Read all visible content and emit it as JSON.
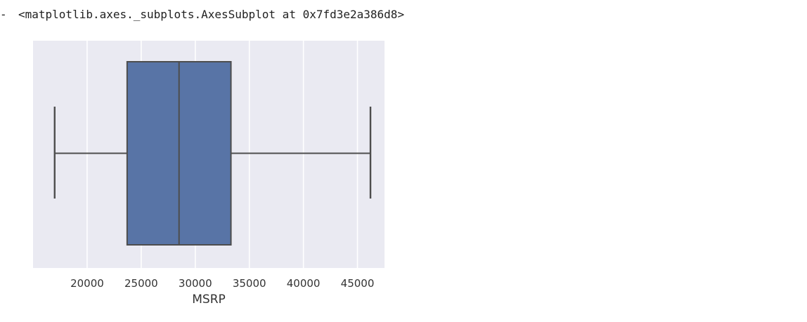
{
  "cell": {
    "prompt_marker": "-",
    "output_text": "<matplotlib.axes._subplots.AxesSubplot at 0x7fd3e2a386d8>"
  },
  "chart_data": {
    "type": "box",
    "xlabel": "MSRP",
    "ylabel": "",
    "title": "",
    "xticks": [
      20000,
      25000,
      30000,
      35000,
      40000,
      45000
    ],
    "xlim": [
      15000,
      47500
    ],
    "grid": true,
    "orientation": "horizontal",
    "box": {
      "whisker_low": 17000,
      "q1": 23700,
      "median": 28500,
      "q3": 33300,
      "whisker_high": 46200
    },
    "colors": {
      "background": "#eaeaf2",
      "box_fill": "#5874a6",
      "lines": "#4d4d4d",
      "grid": "#ffffff"
    }
  }
}
